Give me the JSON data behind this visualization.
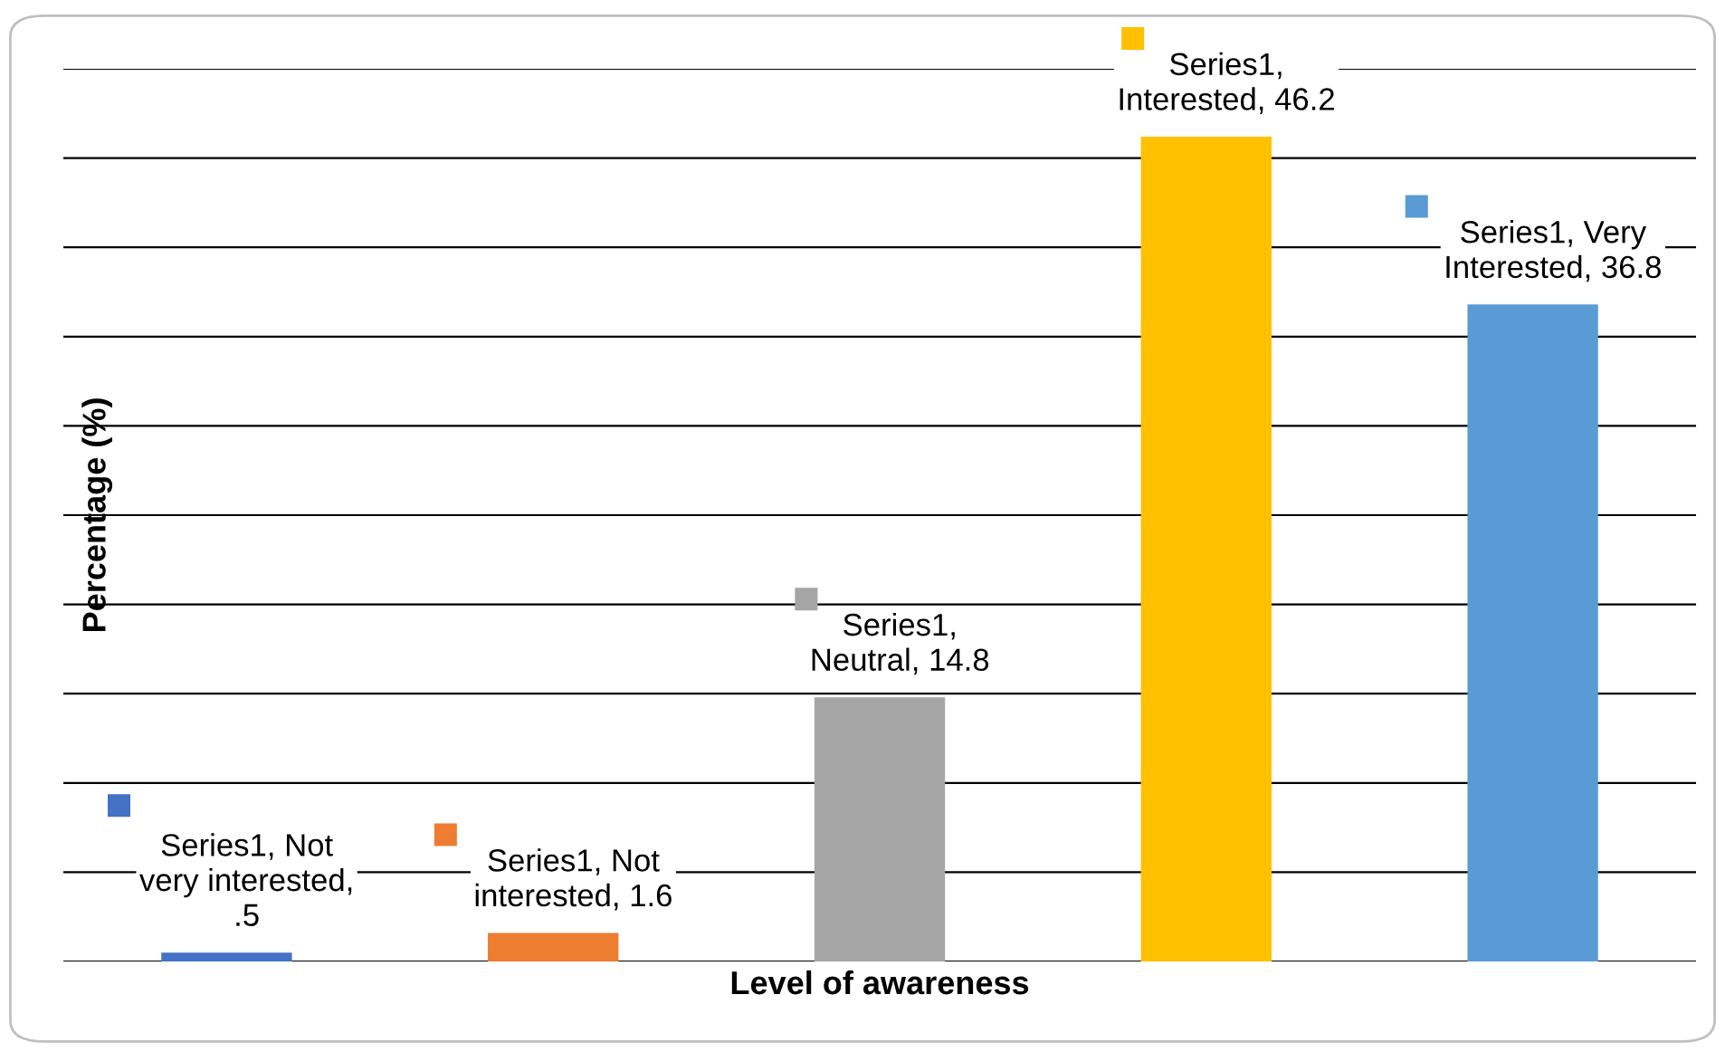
{
  "chart_data": {
    "type": "bar",
    "xlabel": "Level of awareness",
    "ylabel": "Percentage (%)",
    "categories": [
      null,
      null,
      null,
      null,
      null
    ],
    "values": [
      0.5,
      1.6,
      14.8,
      46.2,
      36.8
    ],
    "colors": [
      "#4472c4",
      "#ed7d31",
      "#a5a5a5",
      "#ffc000",
      "#5b9bd5"
    ],
    "value_labels": [
      "Series1, Not\nvery interested,\n.5",
      "Series1, Not\ninterested, 1.6",
      "Series1,\nNeutral, 14.8",
      "Series1,\nInterested, 46.2",
      "Series1, Very\nInterested, 36.8"
    ],
    "ylim": [
      0,
      50
    ],
    "yticks": [
      {
        "value": 0,
        "label": null
      },
      {
        "value": 5,
        "label": null
      },
      {
        "value": 10,
        "label": null
      },
      {
        "value": 15,
        "label": null
      },
      {
        "value": 20,
        "label": null
      },
      {
        "value": 25,
        "label": null
      },
      {
        "value": 30,
        "label": null
      },
      {
        "value": 35,
        "label": null
      },
      {
        "value": 40,
        "label": null
      },
      {
        "value": 45,
        "label": null
      },
      {
        "value": 50,
        "label": null
      }
    ],
    "grid": "y"
  }
}
